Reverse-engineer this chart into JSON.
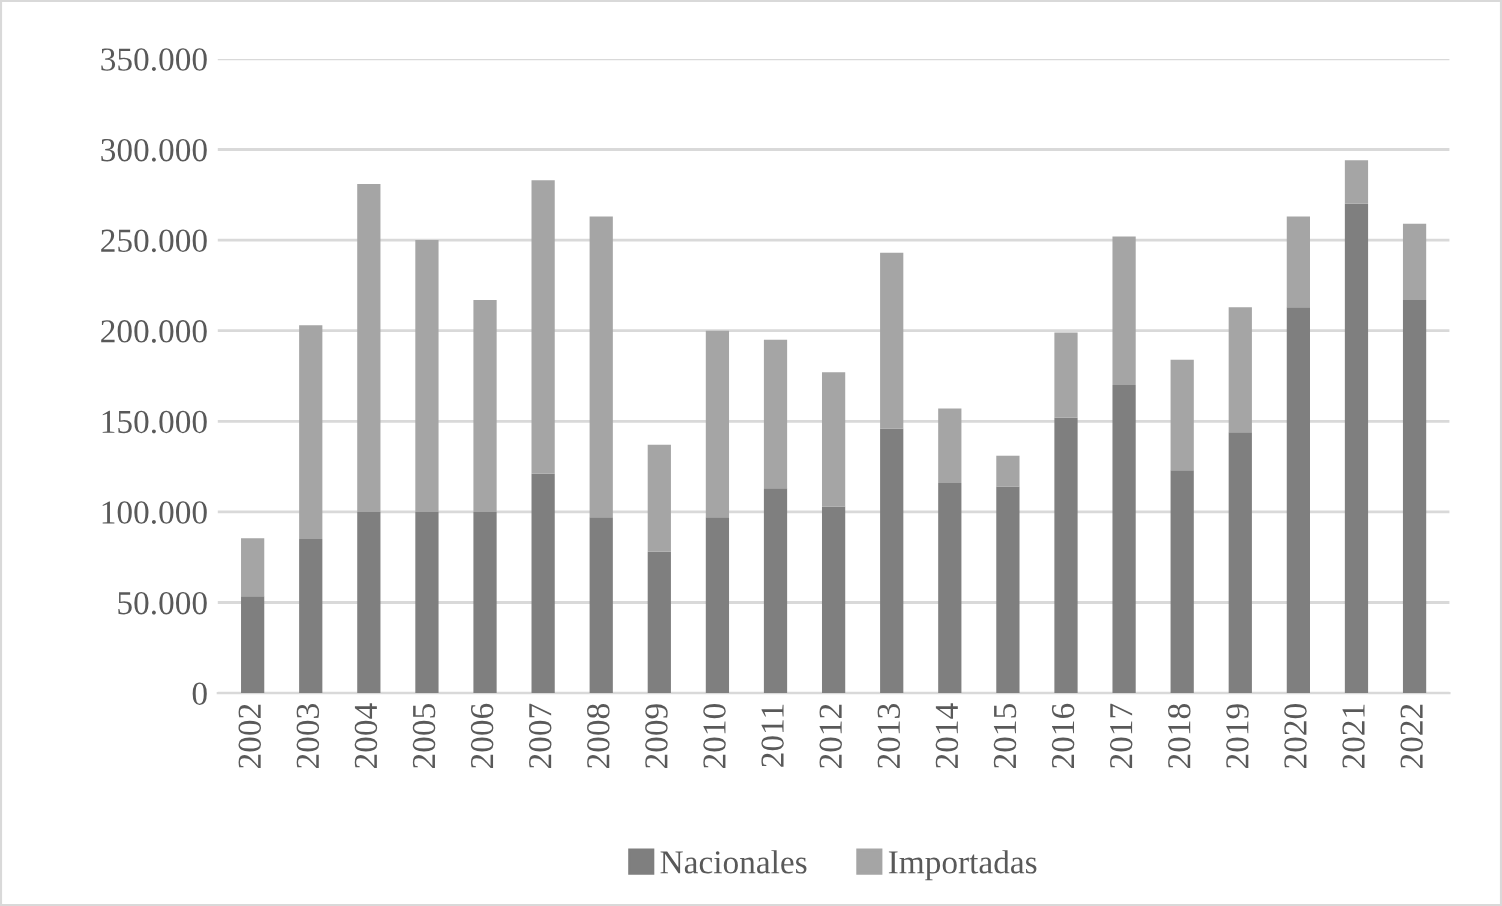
{
  "chart_data": {
    "type": "bar",
    "stacked": true,
    "categories": [
      "2002",
      "2003",
      "2004",
      "2005",
      "2006",
      "2007",
      "2008",
      "2009",
      "2010",
      "2011",
      "2012",
      "2013",
      "2014",
      "2015",
      "2016",
      "2017",
      "2018",
      "2019",
      "2020",
      "2021",
      "2022"
    ],
    "series": [
      {
        "name": "Nacionales",
        "color": "#7f7f7f",
        "values": [
          53500,
          85000,
          100000,
          100000,
          100000,
          121000,
          97000,
          78000,
          97000,
          113000,
          103000,
          146000,
          116000,
          114000,
          152000,
          170000,
          123000,
          144000,
          213000,
          270000,
          217000
        ]
      },
      {
        "name": "Importadas",
        "color": "#a5a5a5",
        "values": [
          32000,
          118000,
          181000,
          150000,
          117000,
          162000,
          166000,
          59000,
          103000,
          82000,
          74000,
          97000,
          41000,
          17000,
          47000,
          82000,
          61000,
          69000,
          50000,
          24000,
          42000
        ]
      }
    ],
    "ylim": [
      0,
      350000
    ],
    "yticks": [
      {
        "value": 0,
        "label": "0"
      },
      {
        "value": 50000,
        "label": "50.000"
      },
      {
        "value": 100000,
        "label": "100.000"
      },
      {
        "value": 150000,
        "label": "150.000"
      },
      {
        "value": 200000,
        "label": "200.000"
      },
      {
        "value": 250000,
        "label": "250.000"
      },
      {
        "value": 300000,
        "label": "300.000"
      },
      {
        "value": 350000,
        "label": "350.000"
      }
    ],
    "grid": "y",
    "legend": "bottom"
  }
}
